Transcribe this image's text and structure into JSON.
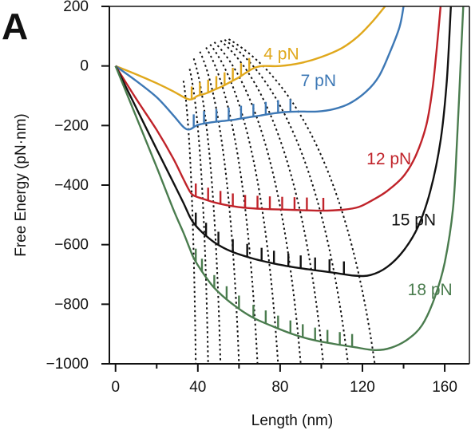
{
  "panel_label": "A",
  "chart_data": {
    "type": "line",
    "title": "",
    "xlabel": "Length (nm)",
    "ylabel": "Free Energy (pN·nm)",
    "xlim": [
      -3,
      172
    ],
    "ylim": [
      -1000,
      200
    ],
    "x_ticks": [
      0,
      40,
      80,
      120,
      160
    ],
    "x_minor_ticks": [
      20,
      60,
      100,
      140
    ],
    "y_ticks": [
      200,
      0,
      -200,
      -400,
      -600,
      -800,
      -1000
    ],
    "grid": false,
    "legend": "inline labels next to each curve",
    "series": [
      {
        "name": "4 pN",
        "color": "#e0a81c",
        "points": [
          [
            0,
            0
          ],
          [
            10,
            -28
          ],
          [
            20,
            -58
          ],
          [
            28,
            -85
          ],
          [
            34,
            -108
          ],
          [
            37,
            -112
          ],
          [
            40,
            -100
          ],
          [
            44,
            -92
          ],
          [
            48,
            -80
          ],
          [
            52,
            -68
          ],
          [
            56,
            -53
          ],
          [
            60,
            -38
          ],
          [
            64,
            -20
          ],
          [
            68,
            -5
          ],
          [
            72,
            0
          ],
          [
            80,
            0
          ],
          [
            90,
            10
          ],
          [
            100,
            30
          ],
          [
            110,
            60
          ],
          [
            118,
            100
          ],
          [
            125,
            150
          ],
          [
            131,
            200
          ]
        ],
        "jump_x": [
          37,
          41,
          45,
          49,
          53,
          57,
          61,
          65
        ],
        "label_pos": [
          72,
          22
        ]
      },
      {
        "name": "7 pN",
        "color": "#3d78b5",
        "points": [
          [
            0,
            0
          ],
          [
            10,
            -50
          ],
          [
            20,
            -105
          ],
          [
            28,
            -165
          ],
          [
            33,
            -205
          ],
          [
            36,
            -213
          ],
          [
            40,
            -198
          ],
          [
            46,
            -190
          ],
          [
            52,
            -185
          ],
          [
            58,
            -180
          ],
          [
            64,
            -173
          ],
          [
            70,
            -167
          ],
          [
            76,
            -160
          ],
          [
            82,
            -155
          ],
          [
            90,
            -153
          ],
          [
            98,
            -153
          ],
          [
            106,
            -145
          ],
          [
            114,
            -125
          ],
          [
            122,
            -85
          ],
          [
            128,
            -35
          ],
          [
            133,
            40
          ],
          [
            138,
            130
          ],
          [
            140,
            200
          ]
        ],
        "jump_x": [
          38,
          43,
          49,
          55,
          61,
          67,
          73,
          79,
          85
        ],
        "label_pos": [
          90,
          -68
        ]
      },
      {
        "name": "12 pN",
        "color": "#c0232a",
        "points": [
          [
            0,
            0
          ],
          [
            10,
            -110
          ],
          [
            20,
            -215
          ],
          [
            28,
            -310
          ],
          [
            33,
            -380
          ],
          [
            36,
            -420
          ],
          [
            38,
            -435
          ],
          [
            42,
            -445
          ],
          [
            48,
            -458
          ],
          [
            56,
            -470
          ],
          [
            64,
            -477
          ],
          [
            72,
            -480
          ],
          [
            80,
            -482
          ],
          [
            90,
            -484
          ],
          [
            100,
            -486
          ],
          [
            110,
            -483
          ],
          [
            118,
            -474
          ],
          [
            125,
            -450
          ],
          [
            132,
            -420
          ],
          [
            140,
            -370
          ],
          [
            146,
            -300
          ],
          [
            151,
            -200
          ],
          [
            154,
            -80
          ],
          [
            156,
            50
          ],
          [
            158,
            200
          ]
        ],
        "jump_x": [
          39,
          45,
          51,
          57,
          63,
          69,
          75,
          81,
          87,
          93,
          101
        ],
        "label_pos": [
          122,
          -330
        ]
      },
      {
        "name": "15 pN",
        "color": "#111111",
        "points": [
          [
            0,
            0
          ],
          [
            10,
            -140
          ],
          [
            20,
            -280
          ],
          [
            28,
            -390
          ],
          [
            33,
            -460
          ],
          [
            36,
            -505
          ],
          [
            38,
            -528
          ],
          [
            42,
            -558
          ],
          [
            48,
            -592
          ],
          [
            56,
            -622
          ],
          [
            66,
            -645
          ],
          [
            76,
            -662
          ],
          [
            86,
            -675
          ],
          [
            96,
            -685
          ],
          [
            106,
            -694
          ],
          [
            116,
            -704
          ],
          [
            124,
            -702
          ],
          [
            132,
            -675
          ],
          [
            140,
            -620
          ],
          [
            147,
            -540
          ],
          [
            153,
            -420
          ],
          [
            158,
            -250
          ],
          [
            161,
            -50
          ],
          [
            163,
            200
          ]
        ],
        "jump_x": [
          39,
          44,
          50,
          57,
          64,
          71,
          77,
          84,
          90,
          97,
          104,
          111
        ],
        "label_pos": [
          134,
          -535
        ]
      },
      {
        "name": "18 pN",
        "color": "#4a7c4e",
        "points": [
          [
            0,
            0
          ],
          [
            10,
            -170
          ],
          [
            20,
            -340
          ],
          [
            28,
            -480
          ],
          [
            33,
            -560
          ],
          [
            36,
            -612
          ],
          [
            38,
            -645
          ],
          [
            42,
            -690
          ],
          [
            48,
            -745
          ],
          [
            56,
            -795
          ],
          [
            66,
            -842
          ],
          [
            76,
            -873
          ],
          [
            86,
            -900
          ],
          [
            96,
            -920
          ],
          [
            106,
            -933
          ],
          [
            116,
            -944
          ],
          [
            126,
            -954
          ],
          [
            134,
            -946
          ],
          [
            142,
            -918
          ],
          [
            149,
            -870
          ],
          [
            155,
            -780
          ],
          [
            160,
            -660
          ],
          [
            164,
            -480
          ],
          [
            166,
            -250
          ],
          [
            168,
            50
          ],
          [
            169,
            200
          ]
        ],
        "jump_x": [
          39,
          42,
          48,
          54,
          60,
          67,
          73,
          79,
          85,
          91,
          97,
          103,
          109,
          115
        ],
        "label_pos": [
          142,
          -770
        ]
      }
    ],
    "dashed_guides": {
      "color": "#111111",
      "count": 10,
      "start_x": [
        33,
        36,
        38,
        41,
        44,
        46,
        48,
        51,
        53,
        55
      ],
      "start_y": [
        -50,
        -10,
        25,
        48,
        62,
        72,
        80,
        85,
        88,
        90
      ],
      "end_x": [
        39,
        45,
        51,
        60,
        69,
        79,
        90,
        101,
        113,
        126
      ],
      "end_y": -1000
    }
  }
}
